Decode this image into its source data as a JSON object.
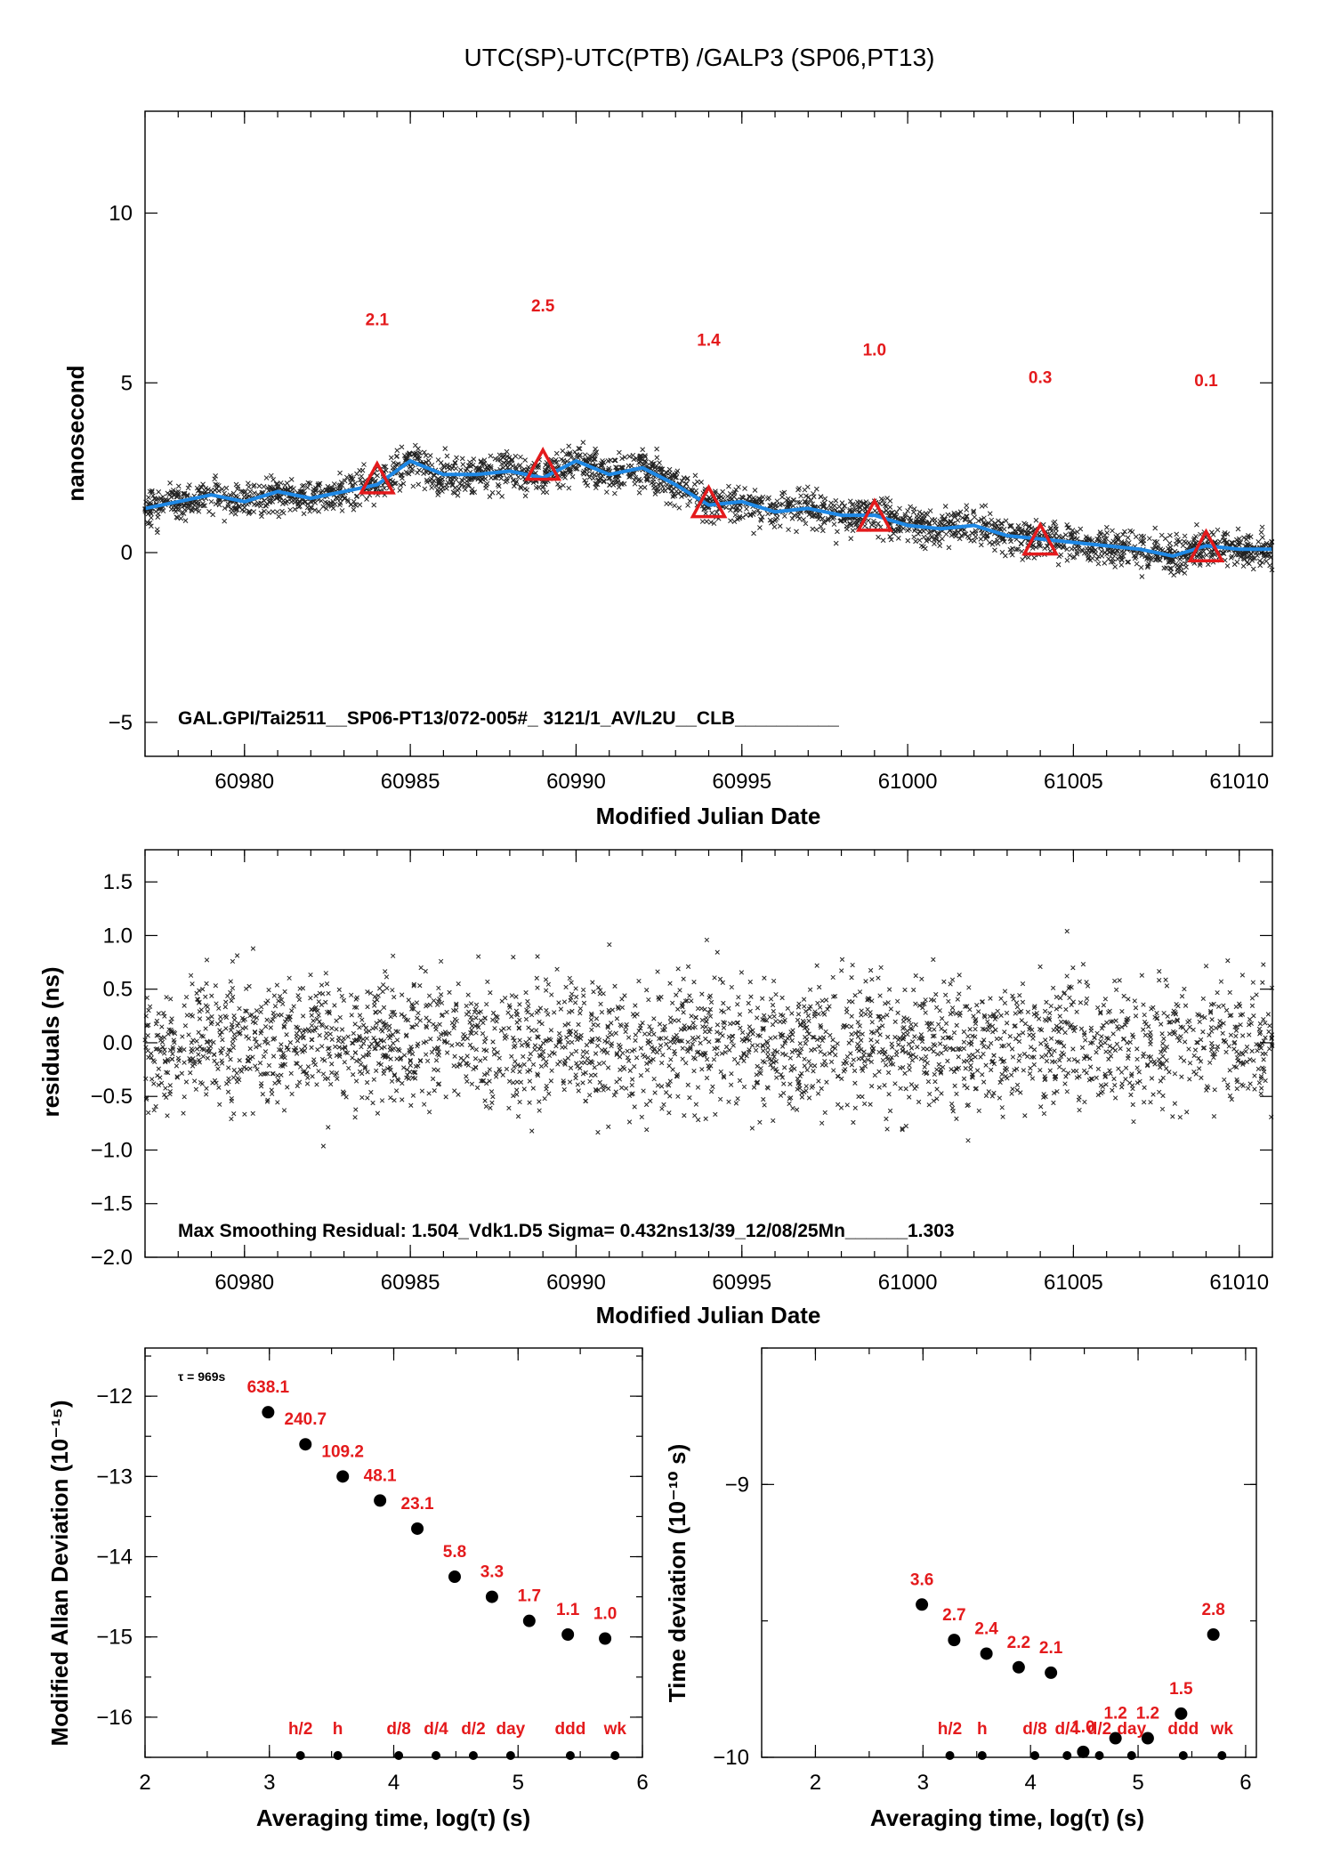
{
  "panel1": {
    "title": "UTC(SP)-UTC(PTB)  /GALP3  (SP06,PT13)",
    "ylabel": "nanosecond",
    "xlabel": "Modified Julian Date",
    "note": "GAL.GPI/Tai2511__SP06-PT13/072-005#_  3121/1_AV/L2U__CLB__________",
    "xlim": [
      60977,
      61011
    ],
    "ylim": [
      -6,
      13
    ],
    "xticks": [
      60980,
      60985,
      60990,
      60995,
      61000,
      61005,
      61010
    ],
    "yticks": [
      -5,
      0,
      5,
      10
    ],
    "smooth_color": "#1e88e5",
    "triangle_color": "#e41a1c",
    "smooth_curve": {
      "x": [
        60977,
        60978,
        60979,
        60980,
        60981,
        60982,
        60983,
        60984,
        60985,
        60986,
        60987,
        60988,
        60989,
        60990,
        60991,
        60992,
        60993,
        60994,
        60995,
        60996,
        60997,
        60998,
        60999,
        61000,
        61001,
        61002,
        61003,
        61004,
        61005,
        61006,
        61007,
        61008,
        61009,
        61010,
        61011
      ],
      "y": [
        1.3,
        1.5,
        1.7,
        1.5,
        1.8,
        1.6,
        1.8,
        2.0,
        2.7,
        2.3,
        2.3,
        2.4,
        2.2,
        2.7,
        2.3,
        2.5,
        2.0,
        1.4,
        1.5,
        1.2,
        1.3,
        1.1,
        1.1,
        0.8,
        0.7,
        0.8,
        0.5,
        0.4,
        0.3,
        0.2,
        0.1,
        -0.1,
        0.2,
        0.1,
        0.1
      ]
    },
    "triangles": {
      "x": [
        60984,
        60989,
        60994,
        60999,
        61004,
        61009
      ],
      "y": [
        2.1,
        2.5,
        1.4,
        1.0,
        0.3,
        0.1
      ],
      "labels": [
        "2.1",
        "2.5",
        "1.4",
        "1.0",
        "0.3",
        "0.1"
      ]
    }
  },
  "panel2": {
    "ylabel": "residuals (ns)",
    "xlabel": "Modified Julian Date",
    "note": "Max Smoothing Residual: 1.504_Vdk1.D5  Sigma= 0.432ns13/39_12/08/25Mn______1.303",
    "xlim": [
      60977,
      61011
    ],
    "ylim": [
      -2.0,
      1.8
    ],
    "xticks": [
      60980,
      60985,
      60990,
      60995,
      61000,
      61005,
      61010
    ],
    "yticks": [
      -2.0,
      -1.5,
      -1.0,
      -0.5,
      0.0,
      0.5,
      1.0,
      1.5
    ],
    "ytick_labels": [
      "−2.0",
      "−1.5",
      "−1.0",
      "−0.5",
      "0.0",
      "0.5",
      "1.0",
      "1.5"
    ]
  },
  "panel3": {
    "ylabel": "Modified Allan Deviation (10⁻¹⁵)",
    "xlabel": "Averaging time, log(τ) (s)",
    "tau_note": "τ = 969s",
    "xlim": [
      2,
      6
    ],
    "ylim": [
      -16.5,
      -11.4
    ],
    "xticks": [
      2,
      3,
      4,
      5,
      6
    ],
    "yticks": [
      -12,
      -13,
      -14,
      -15,
      -16
    ],
    "ytick_labels": [
      "−12",
      "−13",
      "−14",
      "−15",
      "−16"
    ],
    "points": {
      "x": [
        2.99,
        3.29,
        3.59,
        3.89,
        4.19,
        4.49,
        4.79,
        5.09,
        5.4,
        5.7
      ],
      "y": [
        -12.2,
        -12.6,
        -13.0,
        -13.3,
        -13.65,
        -14.25,
        -14.5,
        -14.8,
        -14.97,
        -15.02
      ],
      "labels": [
        "638.1",
        "240.7",
        "109.2",
        "48.1",
        "23.1",
        "5.8",
        "3.3",
        "1.7",
        "1.1",
        "1.0"
      ]
    },
    "markers": {
      "x": [
        3.25,
        3.55,
        4.04,
        4.34,
        4.64,
        4.94,
        5.42,
        5.78
      ],
      "labels": [
        "h/2",
        "h",
        "d/8",
        "d/4",
        "d/2",
        "day",
        "ddd",
        "wk"
      ]
    }
  },
  "panel4": {
    "ylabel": "Time deviation (10⁻¹⁰ s)",
    "xlabel": "Averaging time, log(τ) (s)",
    "xlim": [
      1.5,
      6.1
    ],
    "ylim": [
      -10.0,
      -8.5
    ],
    "xticks": [
      2,
      3,
      4,
      5,
      6
    ],
    "yticks": [
      -9,
      -10
    ],
    "ytick_labels": [
      "−9",
      "−10"
    ],
    "points": {
      "x": [
        2.99,
        3.29,
        3.59,
        3.89,
        4.19,
        4.49,
        4.79,
        5.09,
        5.4,
        5.7
      ],
      "y": [
        -9.44,
        -9.57,
        -9.62,
        -9.67,
        -9.69,
        -9.98,
        -9.93,
        -9.93,
        -9.84,
        -9.55
      ],
      "labels": [
        "3.6",
        "2.7",
        "2.4",
        "2.2",
        "2.1",
        "1.0",
        "1.2",
        "1.2",
        "1.5",
        "2.8"
      ]
    },
    "markers": {
      "x": [
        3.25,
        3.55,
        4.04,
        4.34,
        4.64,
        4.94,
        5.42,
        5.78
      ],
      "labels": [
        "h/2",
        "h",
        "d/8",
        "d/4",
        "d/2",
        "day",
        "ddd",
        "wk"
      ]
    }
  }
}
